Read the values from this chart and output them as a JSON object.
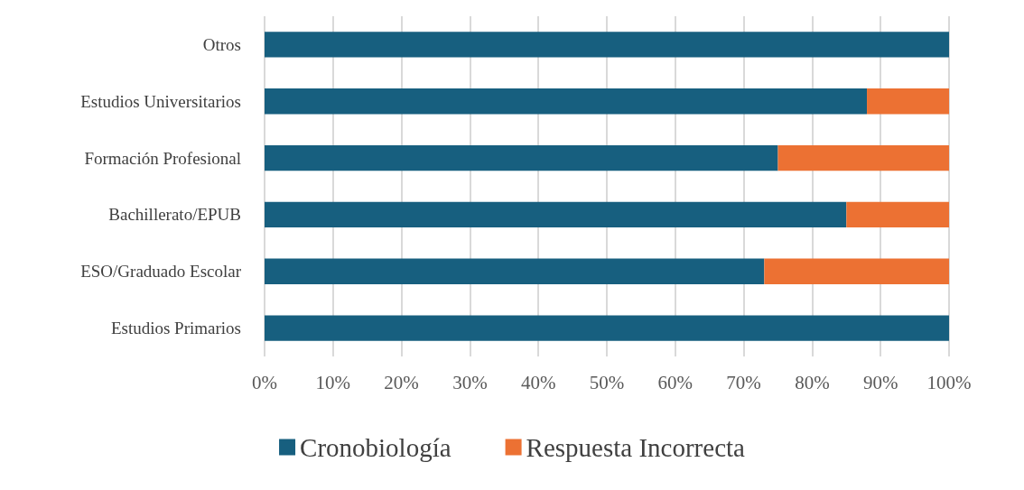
{
  "chart_data": {
    "type": "bar",
    "orientation": "horizontal",
    "stacked": true,
    "categories": [
      "Otros",
      "Estudios Universitarios",
      "Formación Profesional",
      "Bachillerato/EPUB",
      "ESO/Graduado Escolar",
      "Estudios Primarios"
    ],
    "series": [
      {
        "name": "Cronobiología",
        "color": "#175f7f",
        "values": [
          100,
          88,
          75,
          85,
          73,
          100
        ]
      },
      {
        "name": "Respuesta Incorrecta",
        "color": "#ec7133",
        "values": [
          0,
          12,
          25,
          15,
          27,
          0
        ]
      }
    ],
    "xlim": [
      0,
      100
    ],
    "xticks": [
      {
        "value": 0,
        "label": "0%"
      },
      {
        "value": 10,
        "label": "10%"
      },
      {
        "value": 20,
        "label": "20%"
      },
      {
        "value": 30,
        "label": "30%"
      },
      {
        "value": 40,
        "label": "40%"
      },
      {
        "value": 50,
        "label": "50%"
      },
      {
        "value": 60,
        "label": "60%"
      },
      {
        "value": 70,
        "label": "70%"
      },
      {
        "value": 80,
        "label": "80%"
      },
      {
        "value": 90,
        "label": "90%"
      },
      {
        "value": 100,
        "label": "100%"
      }
    ],
    "grid": "x",
    "legend": "bottom"
  }
}
